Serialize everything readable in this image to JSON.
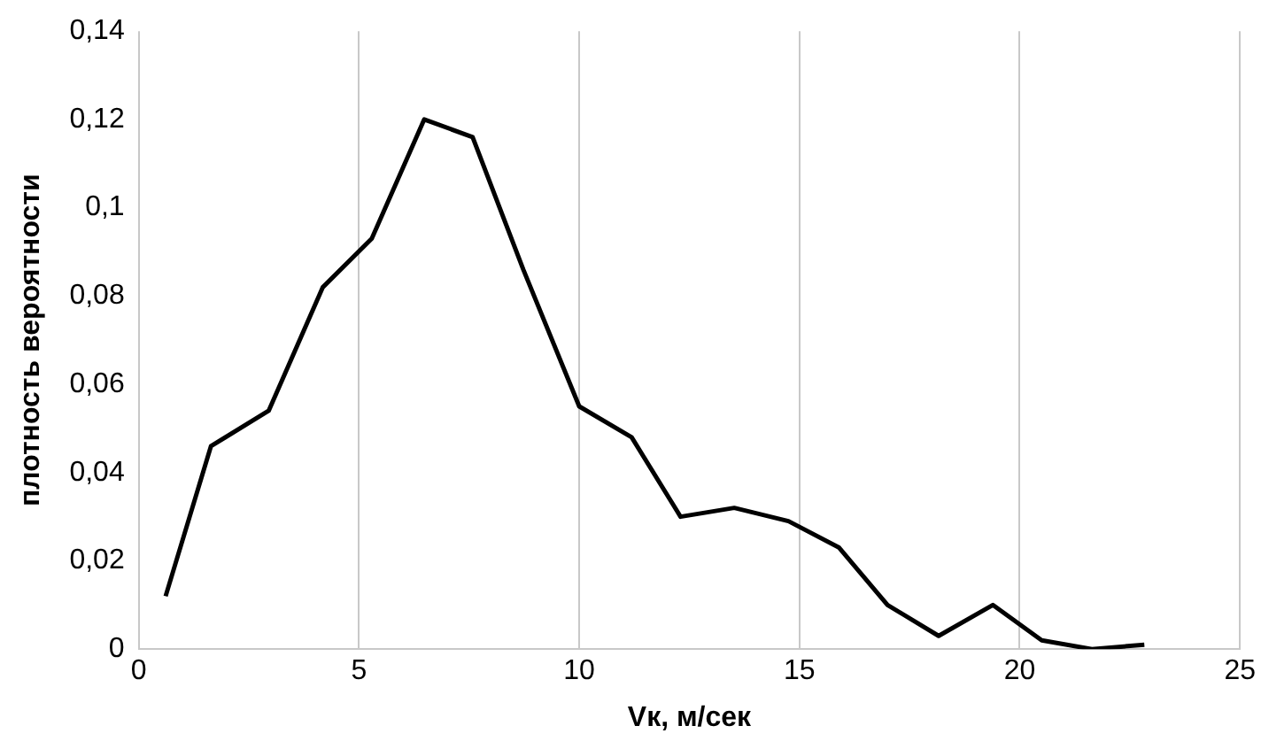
{
  "chart_data": {
    "type": "line",
    "xlabel": "Vк, м/сек",
    "ylabel": "плотность вероятности",
    "x": [
      0.61,
      1.64,
      2.95,
      4.18,
      5.29,
      6.48,
      7.58,
      8.73,
      10.0,
      11.19,
      12.3,
      13.52,
      14.75,
      15.9,
      17.0,
      18.16,
      19.39,
      20.5,
      21.64,
      22.83
    ],
    "series": [
      {
        "color": "#000000",
        "values": [
          0.012,
          0.046,
          0.054,
          0.082,
          0.093,
          0.12,
          0.116,
          0.086,
          0.055,
          0.048,
          0.03,
          0.032,
          0.029,
          0.023,
          0.01,
          0.003,
          0.01,
          0.002,
          0.0,
          0.001
        ]
      }
    ],
    "xlim": [
      0,
      25
    ],
    "xticks": [
      0,
      5,
      10,
      15,
      20,
      25
    ],
    "ylim": [
      0,
      0.14
    ],
    "yticks": [
      0,
      {
        "value": 0.02,
        "label": "0,02"
      },
      {
        "value": 0.04,
        "label": "0,04"
      },
      {
        "value": 0.06,
        "label": "0,06"
      },
      {
        "value": 0.08,
        "label": "0,08"
      },
      {
        "value": 0.1,
        "label": "0,1"
      },
      {
        "value": 0.12,
        "label": "0,12"
      },
      {
        "value": 0.14,
        "label": "0,14"
      }
    ],
    "grid": "x",
    "legend": false,
    "marker": "none",
    "line_style": "solid"
  }
}
